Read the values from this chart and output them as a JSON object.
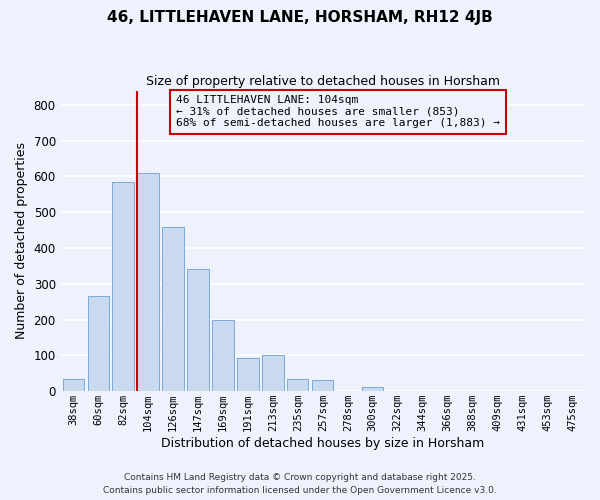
{
  "title": "46, LITTLEHAVEN LANE, HORSHAM, RH12 4JB",
  "subtitle": "Size of property relative to detached houses in Horsham",
  "xlabel": "Distribution of detached houses by size in Horsham",
  "ylabel": "Number of detached properties",
  "bar_color": "#c9d9f0",
  "bar_edge_color": "#7baad4",
  "background_color": "#eef2fc",
  "grid_color": "#ffffff",
  "annotation_box_edge": "#cc0000",
  "vline_color": "#cc0000",
  "categories": [
    "38sqm",
    "60sqm",
    "82sqm",
    "104sqm",
    "126sqm",
    "147sqm",
    "169sqm",
    "191sqm",
    "213sqm",
    "235sqm",
    "257sqm",
    "278sqm",
    "300sqm",
    "322sqm",
    "344sqm",
    "366sqm",
    "388sqm",
    "409sqm",
    "431sqm",
    "453sqm",
    "475sqm"
  ],
  "values": [
    35,
    265,
    585,
    610,
    460,
    340,
    200,
    93,
    100,
    35,
    30,
    0,
    12,
    0,
    0,
    0,
    0,
    0,
    0,
    0,
    0
  ],
  "ylim": [
    0,
    840
  ],
  "yticks": [
    0,
    100,
    200,
    300,
    400,
    500,
    600,
    700,
    800
  ],
  "vline_index": 3,
  "annotation_text": "46 LITTLEHAVEN LANE: 104sqm\n← 31% of detached houses are smaller (853)\n68% of semi-detached houses are larger (1,883) →",
  "footer_line1": "Contains HM Land Registry data © Crown copyright and database right 2025.",
  "footer_line2": "Contains public sector information licensed under the Open Government Licence v3.0."
}
